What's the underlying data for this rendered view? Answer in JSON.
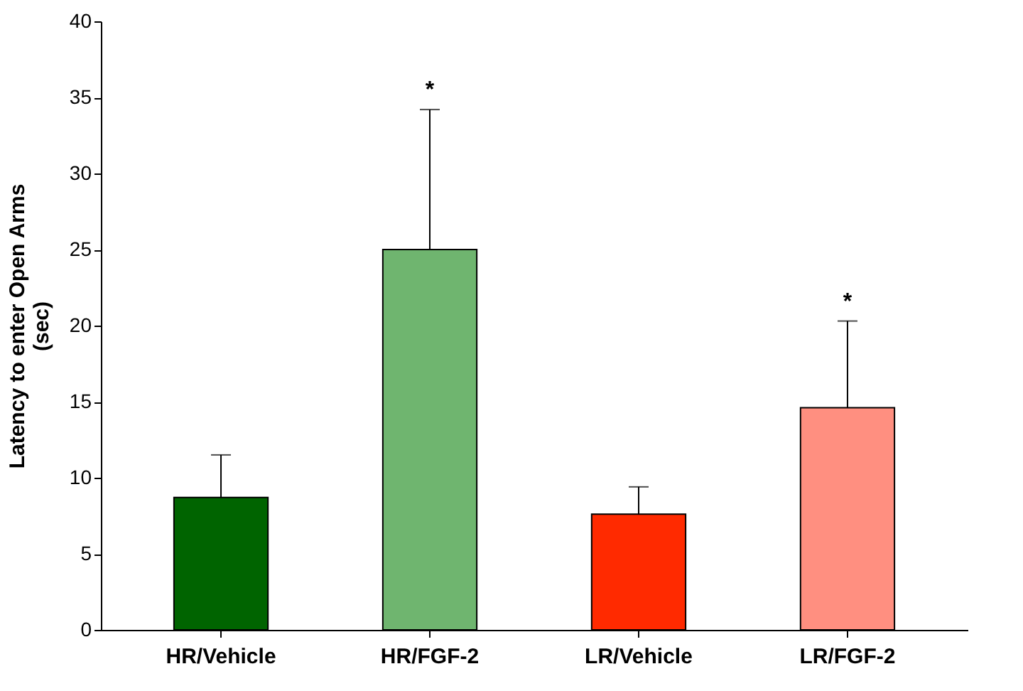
{
  "chart_data": {
    "type": "bar",
    "categories": [
      "HR/Vehicle",
      "HR/FGF-2",
      "LR/Vehicle",
      "LR/FGF-2"
    ],
    "values": [
      8.7,
      25,
      7.6,
      14.6
    ],
    "colors": [
      "#006400",
      "#6fb56f",
      "#ff2a00",
      "#ff8f80"
    ],
    "errors": [
      [
        8.7,
        11.5
      ],
      [
        25,
        34.2
      ],
      [
        7.6,
        9.4
      ],
      [
        14.6,
        20.3
      ]
    ],
    "ylabel": "Latency to enter Open Arms (sec)",
    "ylim": [
      0,
      40
    ],
    "yticks": [
      0,
      5,
      10,
      15,
      20,
      25,
      30,
      35,
      40
    ],
    "grid": false,
    "legend": false,
    "annotations": [
      {
        "text": "*",
        "x": "HR/FGF-2",
        "y": 34.2
      },
      {
        "text": "*",
        "x": "LR/FGF-2",
        "y": 20.3
      }
    ]
  }
}
